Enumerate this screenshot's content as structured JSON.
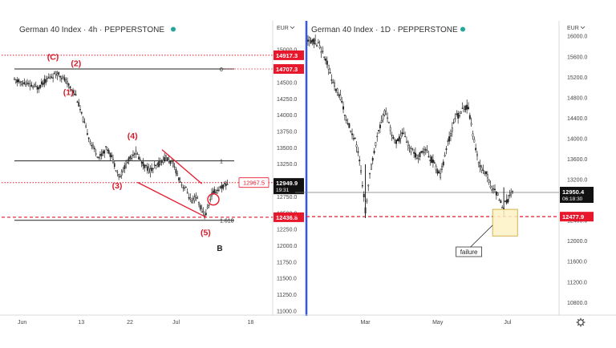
{
  "colors": {
    "candle": "#222222",
    "accent_red": "#e8182c",
    "wave_red": "#d81b2a",
    "level_black": "#222222",
    "live_dot": "#26a69a",
    "divider_blue": "#3656e8",
    "zone_fill": "#fdf2c4",
    "zone_stroke": "#c9a227",
    "axis_text": "#444444"
  },
  "chart_data": [
    {
      "type": "candlestick",
      "title": "German 40 Index · 4h · PEPPERSTONE",
      "currency": "EUR",
      "ylim": [
        10950,
        15420
      ],
      "y_ticks": [
        "15000.0",
        "14750.0",
        "14500.0",
        "14250.0",
        "14000.0",
        "13750.0",
        "13500.0",
        "13250.0",
        "13000.0",
        "12750.0",
        "12500.0",
        "12250.0",
        "12000.0",
        "11750.0",
        "11500.0",
        "11250.0",
        "11000.0"
      ],
      "x_labels": [
        {
          "label": "Jun",
          "at": 0.03
        },
        {
          "label": "13",
          "at": 0.26
        },
        {
          "label": "22",
          "at": 0.45
        },
        {
          "label": "Jul",
          "at": 0.63
        },
        {
          "label": "18",
          "at": 0.92
        }
      ],
      "price_path": [
        [
          0.0,
          14530
        ],
        [
          0.05,
          14470
        ],
        [
          0.09,
          14420
        ],
        [
          0.13,
          14560
        ],
        [
          0.17,
          14650
        ],
        [
          0.2,
          14520
        ],
        [
          0.24,
          14300
        ],
        [
          0.27,
          13900
        ],
        [
          0.3,
          13550
        ],
        [
          0.33,
          13350
        ],
        [
          0.36,
          13500
        ],
        [
          0.38,
          13350
        ],
        [
          0.41,
          13050
        ],
        [
          0.44,
          13280
        ],
        [
          0.47,
          13450
        ],
        [
          0.5,
          13250
        ],
        [
          0.53,
          13150
        ],
        [
          0.56,
          13240
        ],
        [
          0.59,
          13350
        ],
        [
          0.62,
          13240
        ],
        [
          0.65,
          12950
        ],
        [
          0.67,
          12860
        ],
        [
          0.69,
          12660
        ],
        [
          0.71,
          12760
        ],
        [
          0.73,
          12530
        ],
        [
          0.745,
          12470
        ],
        [
          0.77,
          12800
        ],
        [
          0.8,
          12880
        ],
        [
          0.83,
          12950
        ]
      ],
      "levels": [
        {
          "value": 14917.3,
          "label": "14917.3",
          "style": "dotted-red",
          "marker": ""
        },
        {
          "value": 14707.3,
          "label": "14707.3",
          "style": "solid-black",
          "marker": "0"
        },
        {
          "value": 13300,
          "label": "",
          "style": "solid-black",
          "marker": "1"
        },
        {
          "value": 12967.5,
          "label": "12967.5",
          "style": "dotted-red",
          "marker": ""
        },
        {
          "value": 12436.8,
          "label": "12436.8",
          "style": "dashed-red",
          "marker": ""
        },
        {
          "value": 12390,
          "label": "",
          "style": "solid-black",
          "marker": "1.618"
        }
      ],
      "current_price": {
        "value": 12949.9,
        "label": "12949.9",
        "countdown": "19:31"
      },
      "wedge": {
        "upper": [
          [
            0.575,
            13470
          ],
          [
            0.73,
            12950
          ]
        ],
        "lower": [
          [
            0.48,
            12970
          ],
          [
            0.745,
            12440
          ]
        ]
      },
      "circle_at": [
        0.775,
        12710
      ],
      "wave_labels": [
        {
          "text": "(C)",
          "x": 0.15,
          "y": 14850
        },
        {
          "text": "(2)",
          "x": 0.24,
          "y": 14750
        },
        {
          "text": "(1)",
          "x": 0.21,
          "y": 14310
        },
        {
          "text": "(4)",
          "x": 0.46,
          "y": 13640
        },
        {
          "text": "(3)",
          "x": 0.4,
          "y": 12880
        },
        {
          "text": "(5)",
          "x": 0.745,
          "y": 12160
        }
      ],
      "structure_label": {
        "text": "B",
        "x": 0.8,
        "y": 11920
      }
    },
    {
      "type": "candlestick",
      "title": "German 40 Index · 1D · PEPPERSTONE",
      "currency": "EUR",
      "ylim": [
        10570,
        16270
      ],
      "y_ticks": [
        "16000.0",
        "15600.0",
        "15200.0",
        "14800.0",
        "14400.0",
        "14000.0",
        "13600.0",
        "13200.0",
        "12800.0",
        "12400.0",
        "12000.0",
        "11600.0",
        "11200.0",
        "10800.0"
      ],
      "x_labels": [
        {
          "label": "Mar",
          "at": 0.23
        },
        {
          "label": "May",
          "at": 0.52
        },
        {
          "label": "Jul",
          "at": 0.8
        }
      ],
      "price_path": [
        [
          0.0,
          15950
        ],
        [
          0.04,
          15850
        ],
        [
          0.07,
          15600
        ],
        [
          0.1,
          15100
        ],
        [
          0.13,
          14800
        ],
        [
          0.16,
          14300
        ],
        [
          0.19,
          13950
        ],
        [
          0.21,
          13500
        ],
        [
          0.23,
          12600
        ],
        [
          0.25,
          13350
        ],
        [
          0.28,
          14150
        ],
        [
          0.31,
          14550
        ],
        [
          0.33,
          14200
        ],
        [
          0.35,
          13900
        ],
        [
          0.38,
          14100
        ],
        [
          0.41,
          13800
        ],
        [
          0.44,
          13650
        ],
        [
          0.47,
          13800
        ],
        [
          0.5,
          13550
        ],
        [
          0.53,
          13250
        ],
        [
          0.56,
          13900
        ],
        [
          0.59,
          14400
        ],
        [
          0.62,
          14550
        ],
        [
          0.64,
          14650
        ],
        [
          0.66,
          14100
        ],
        [
          0.68,
          13600
        ],
        [
          0.7,
          13400
        ],
        [
          0.72,
          13250
        ],
        [
          0.74,
          13000
        ],
        [
          0.76,
          12900
        ],
        [
          0.78,
          12650
        ],
        [
          0.8,
          12800
        ],
        [
          0.82,
          12950
        ]
      ],
      "levels": [
        {
          "value": 12950.4,
          "label": "",
          "style": "solid-grey",
          "marker": ""
        },
        {
          "value": 12477.9,
          "label": "12477.9",
          "style": "dashed-red",
          "marker": ""
        }
      ],
      "current_price": {
        "value": 12950.4,
        "label": "12950.4",
        "countdown": "06:18:30"
      },
      "zone": {
        "x0": 0.74,
        "x1": 0.84,
        "y0": 12620,
        "y1": 12100
      },
      "annotation": {
        "text": "failure",
        "x": 0.6,
        "y": 11760,
        "arrow_to": [
          0.74,
          12310
        ]
      }
    }
  ]
}
